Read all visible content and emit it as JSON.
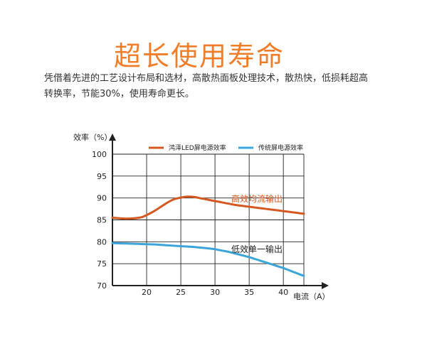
{
  "headline": "超长使用寿命",
  "intro": "凭借着先进的工艺设计布局和选材，高散热面板处理技术，散热快，低损耗超高转换率，节能30%，使用寿命更长。",
  "chart_data": {
    "type": "line",
    "ylabel": "效率（%）",
    "xlabel": "电流（A）",
    "xlim": [
      15,
      43
    ],
    "ylim": [
      70,
      100
    ],
    "x_ticks": [
      20,
      25,
      30,
      35,
      40
    ],
    "y_ticks": [
      70,
      75,
      80,
      85,
      90,
      95,
      100
    ],
    "grid": true,
    "legend_position": "top",
    "series": [
      {
        "name": "鸿泽LED屏电源效率",
        "color": "#d4581f",
        "annotation": "高效均流输出",
        "x": [
          15,
          17,
          19,
          20,
          21,
          22,
          23,
          24,
          25,
          26,
          27,
          28,
          29,
          30,
          31,
          32,
          33,
          34,
          35,
          36,
          37,
          38,
          39,
          40,
          41,
          42,
          43
        ],
        "y": [
          85.5,
          85.3,
          85.5,
          86.1,
          86.9,
          87.9,
          88.9,
          89.7,
          90.1,
          90.3,
          90.2,
          89.9,
          89.6,
          89.3,
          89.0,
          88.7,
          88.4,
          88.2,
          88.0,
          87.8,
          87.6,
          87.4,
          87.2,
          87.0,
          86.8,
          86.6,
          86.4
        ]
      },
      {
        "name": "传统屏电源效率",
        "color": "#3ba5db",
        "annotation": "低效单一输出",
        "x": [
          15,
          17,
          19,
          21,
          23,
          25,
          27,
          29,
          30,
          31,
          32,
          33,
          34,
          35,
          36,
          37,
          38,
          39,
          40,
          41,
          42,
          43
        ],
        "y": [
          79.7,
          79.6,
          79.5,
          79.4,
          79.2,
          79.0,
          78.8,
          78.5,
          78.3,
          78.0,
          77.7,
          77.3,
          76.9,
          76.5,
          76.0,
          75.5,
          75.0,
          74.5,
          74.0,
          73.4,
          72.8,
          72.2
        ]
      }
    ]
  }
}
